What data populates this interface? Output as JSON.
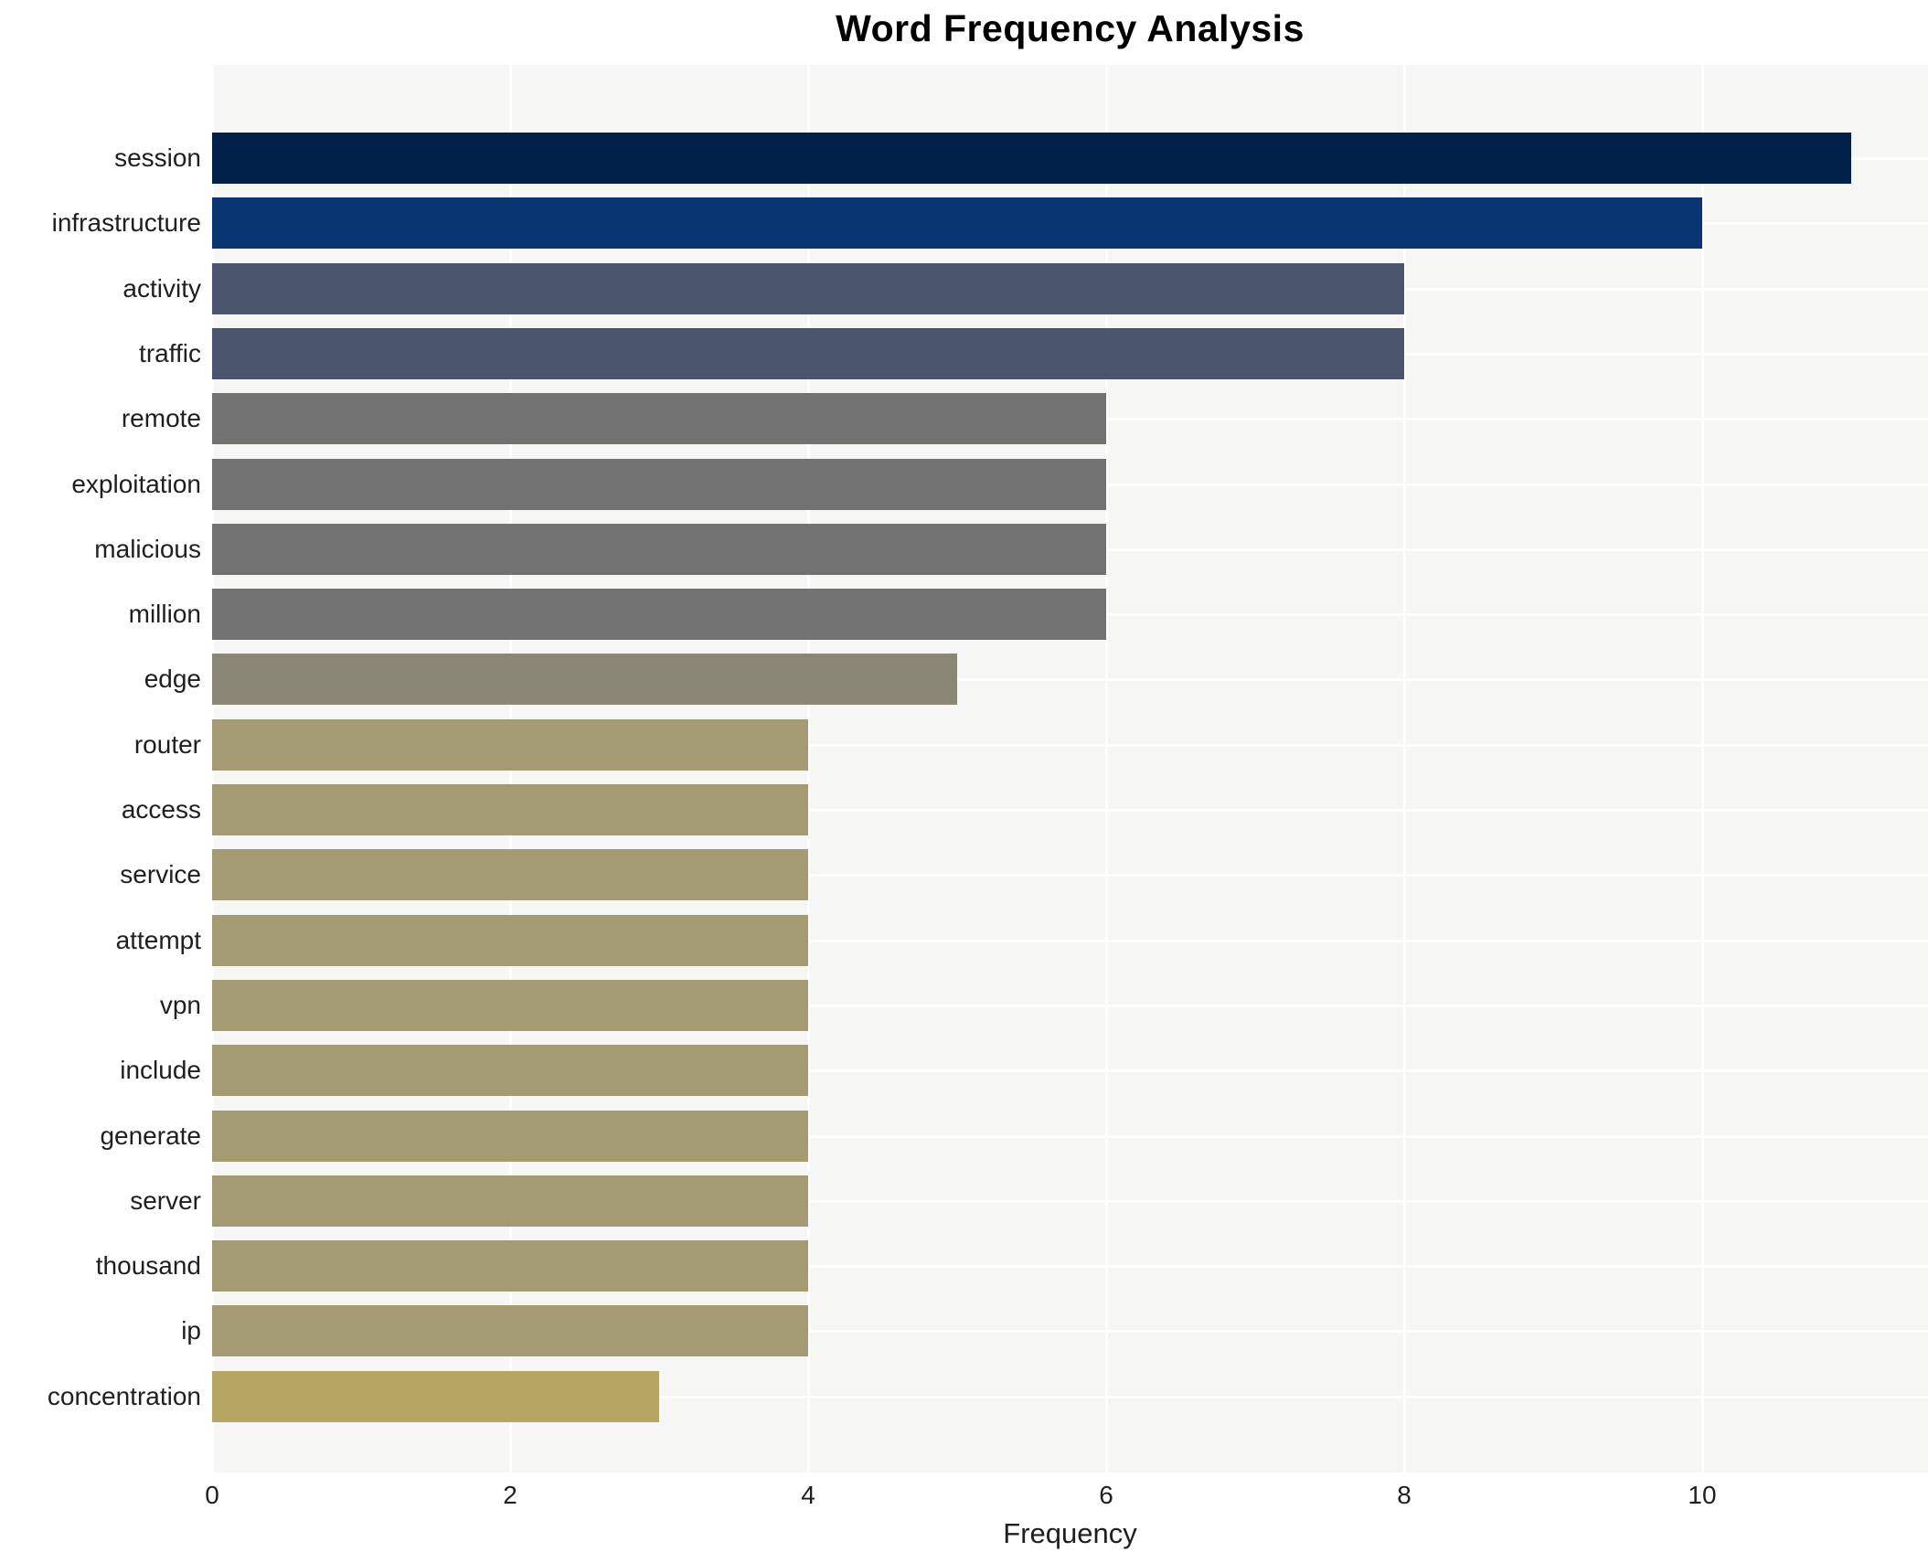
{
  "title": "Word Frequency Analysis",
  "chart_data": {
    "type": "bar",
    "orientation": "horizontal",
    "title": "Word Frequency Analysis",
    "xlabel": "Frequency",
    "ylabel": "",
    "categories": [
      "session",
      "infrastructure",
      "activity",
      "traffic",
      "remote",
      "exploitation",
      "malicious",
      "million",
      "edge",
      "router",
      "access",
      "service",
      "attempt",
      "vpn",
      "include",
      "generate",
      "server",
      "thousand",
      "ip",
      "concentration"
    ],
    "values": [
      11,
      10,
      8,
      8,
      6,
      6,
      6,
      6,
      5,
      4,
      4,
      4,
      4,
      4,
      4,
      4,
      4,
      4,
      4,
      3
    ],
    "bar_colors": [
      "#02214a",
      "#093571",
      "#4a546d",
      "#4a546d",
      "#727272",
      "#727272",
      "#727272",
      "#727272",
      "#8a8777",
      "#a49b75",
      "#a49b75",
      "#a49b75",
      "#a49b75",
      "#a49b75",
      "#a49b75",
      "#a49b75",
      "#a49b75",
      "#a49b75",
      "#a49b75",
      "#b5a763"
    ],
    "xticks": [
      0,
      2,
      4,
      6,
      8,
      10
    ],
    "xlim": [
      0,
      11.5
    ],
    "grid": true,
    "legend": "none",
    "plot_background": "#f6f6f4",
    "grid_color": "#ffffff",
    "colormap": "cividis"
  }
}
